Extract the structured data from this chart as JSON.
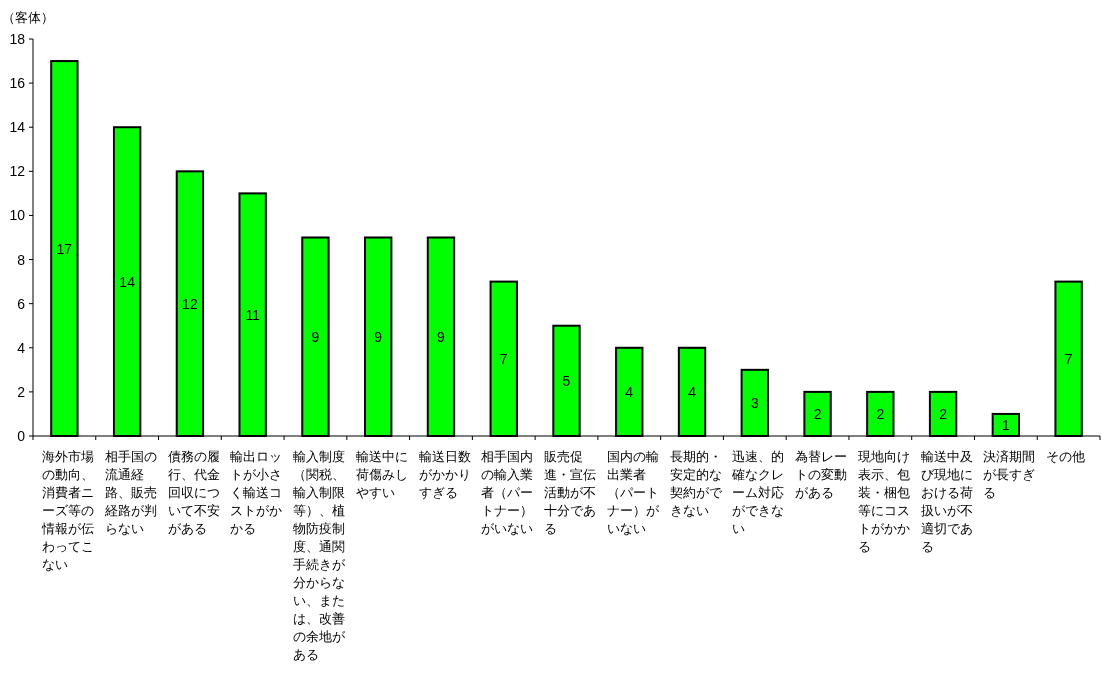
{
  "chart_data": {
    "type": "bar",
    "ylabel": "（客体）",
    "categories": [
      "海外市場の動向、消費者ニーズ等の情報が伝わってこない",
      "相手国の流通経路、販売経路が判らない",
      "債務の履行、代金回収について不安がある",
      "輸出ロットが小さく輸送コストがかかる",
      "輸入制度（関税、輸入制限等）、植物防疫制度、通関手続きが分からない、または、改善の余地がある",
      "輸送中に荷傷みしやすい",
      "輸送日数がかかりすぎる",
      "相手国内の輸入業者（パートナー）がいない",
      "販売促進・宣伝活動が不十分である",
      "国内の輸出業者（パートナー）がいない",
      "長期的・安定的な契約ができない",
      "迅速、的確なクレーム対応ができない",
      "為替レートの変動がある",
      "現地向け表示、包装・梱包等にコストがかかる",
      "輸送中及び現地における荷扱いが不適切である",
      "決済期間が長すぎる",
      "その他"
    ],
    "values": [
      17,
      14,
      12,
      11,
      9,
      9,
      9,
      7,
      5,
      4,
      4,
      3,
      2,
      2,
      2,
      1,
      7
    ],
    "color": "#00ff00",
    "ylim": [
      0,
      18
    ],
    "yticks": [
      0,
      2,
      4,
      6,
      8,
      10,
      12,
      14,
      16,
      18
    ],
    "data_labels": true,
    "grid": false
  }
}
